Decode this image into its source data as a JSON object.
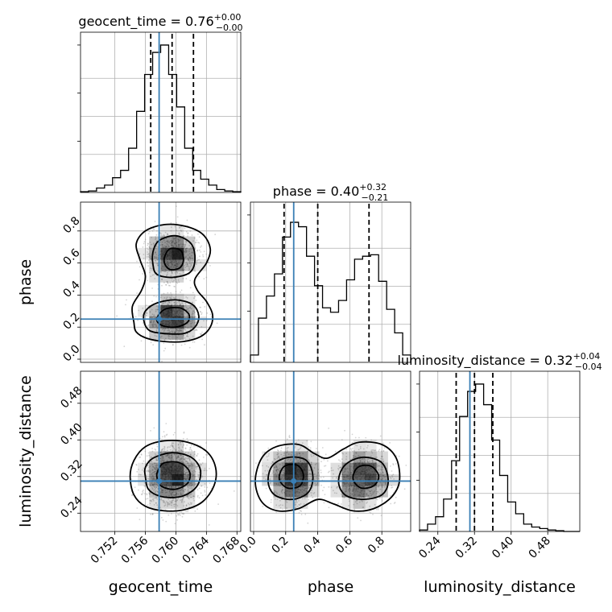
{
  "chart_data": {
    "type": "corner",
    "parameters": [
      "geocent_time",
      "phase",
      "luminosity_distance"
    ],
    "axis_labels": {
      "geocent_time": "geocent_time",
      "phase": "phase",
      "luminosity_distance": "luminosity_distance"
    },
    "titles": {
      "geocent_time": {
        "label": "geocent_time",
        "value": "0.76",
        "plus": "+0.00",
        "minus": "−0.00"
      },
      "phase": {
        "label": "phase",
        "value": "0.40",
        "plus": "+0.32",
        "minus": "−0.21"
      },
      "luminosity_distance": {
        "label": "luminosity_distance",
        "value": "0.32",
        "plus": "+0.04",
        "minus": "−0.04"
      }
    },
    "ranges": {
      "geocent_time": [
        0.7475,
        0.7685
      ],
      "phase": [
        -0.02,
        0.98
      ],
      "luminosity_distance": [
        0.2,
        0.55
      ]
    },
    "ticks": {
      "geocent_time": [
        "0.752",
        "0.756",
        "0.760",
        "0.764",
        "0.768"
      ],
      "phase": [
        "0.0",
        "0.2",
        "0.4",
        "0.6",
        "0.8"
      ],
      "luminosity_distance": [
        "0.24",
        "0.32",
        "0.40",
        "0.48"
      ]
    },
    "truths": {
      "geocent_time": 0.7578,
      "phase": 0.25,
      "luminosity_distance": 0.31
    },
    "quantiles": {
      "geocent_time": [
        0.7567,
        0.7595,
        0.7623
      ],
      "phase": [
        0.19,
        0.4,
        0.72
      ],
      "luminosity_distance": [
        0.28,
        0.32,
        0.36
      ]
    },
    "histograms": {
      "geocent_time": {
        "edges_start": 0.7475,
        "bin_width": 0.00105,
        "counts": [
          0.005,
          0.01,
          0.03,
          0.05,
          0.1,
          0.15,
          0.3,
          0.55,
          0.8,
          0.95,
          1.0,
          0.8,
          0.58,
          0.3,
          0.15,
          0.09,
          0.05,
          0.02,
          0.01,
          0.005
        ]
      },
      "phase": {
        "edges_start": -0.02,
        "bin_width": 0.05,
        "counts": [
          0.05,
          0.3,
          0.45,
          0.6,
          0.85,
          0.95,
          0.92,
          0.72,
          0.52,
          0.37,
          0.34,
          0.42,
          0.56,
          0.7,
          0.72,
          0.73,
          0.55,
          0.36,
          0.2,
          0.05
        ]
      },
      "luminosity_distance": {
        "edges_start": 0.2,
        "bin_width": 0.0175,
        "counts": [
          0.01,
          0.05,
          0.1,
          0.22,
          0.48,
          0.78,
          0.95,
          1.0,
          0.86,
          0.62,
          0.38,
          0.2,
          0.12,
          0.05,
          0.03,
          0.02,
          0.01,
          0.005,
          0.0,
          0.0
        ]
      }
    },
    "colors": {
      "truth": "#3a7fb5",
      "contour": "#000000",
      "density": "#000000",
      "samples": "#888888"
    },
    "grid": true
  }
}
